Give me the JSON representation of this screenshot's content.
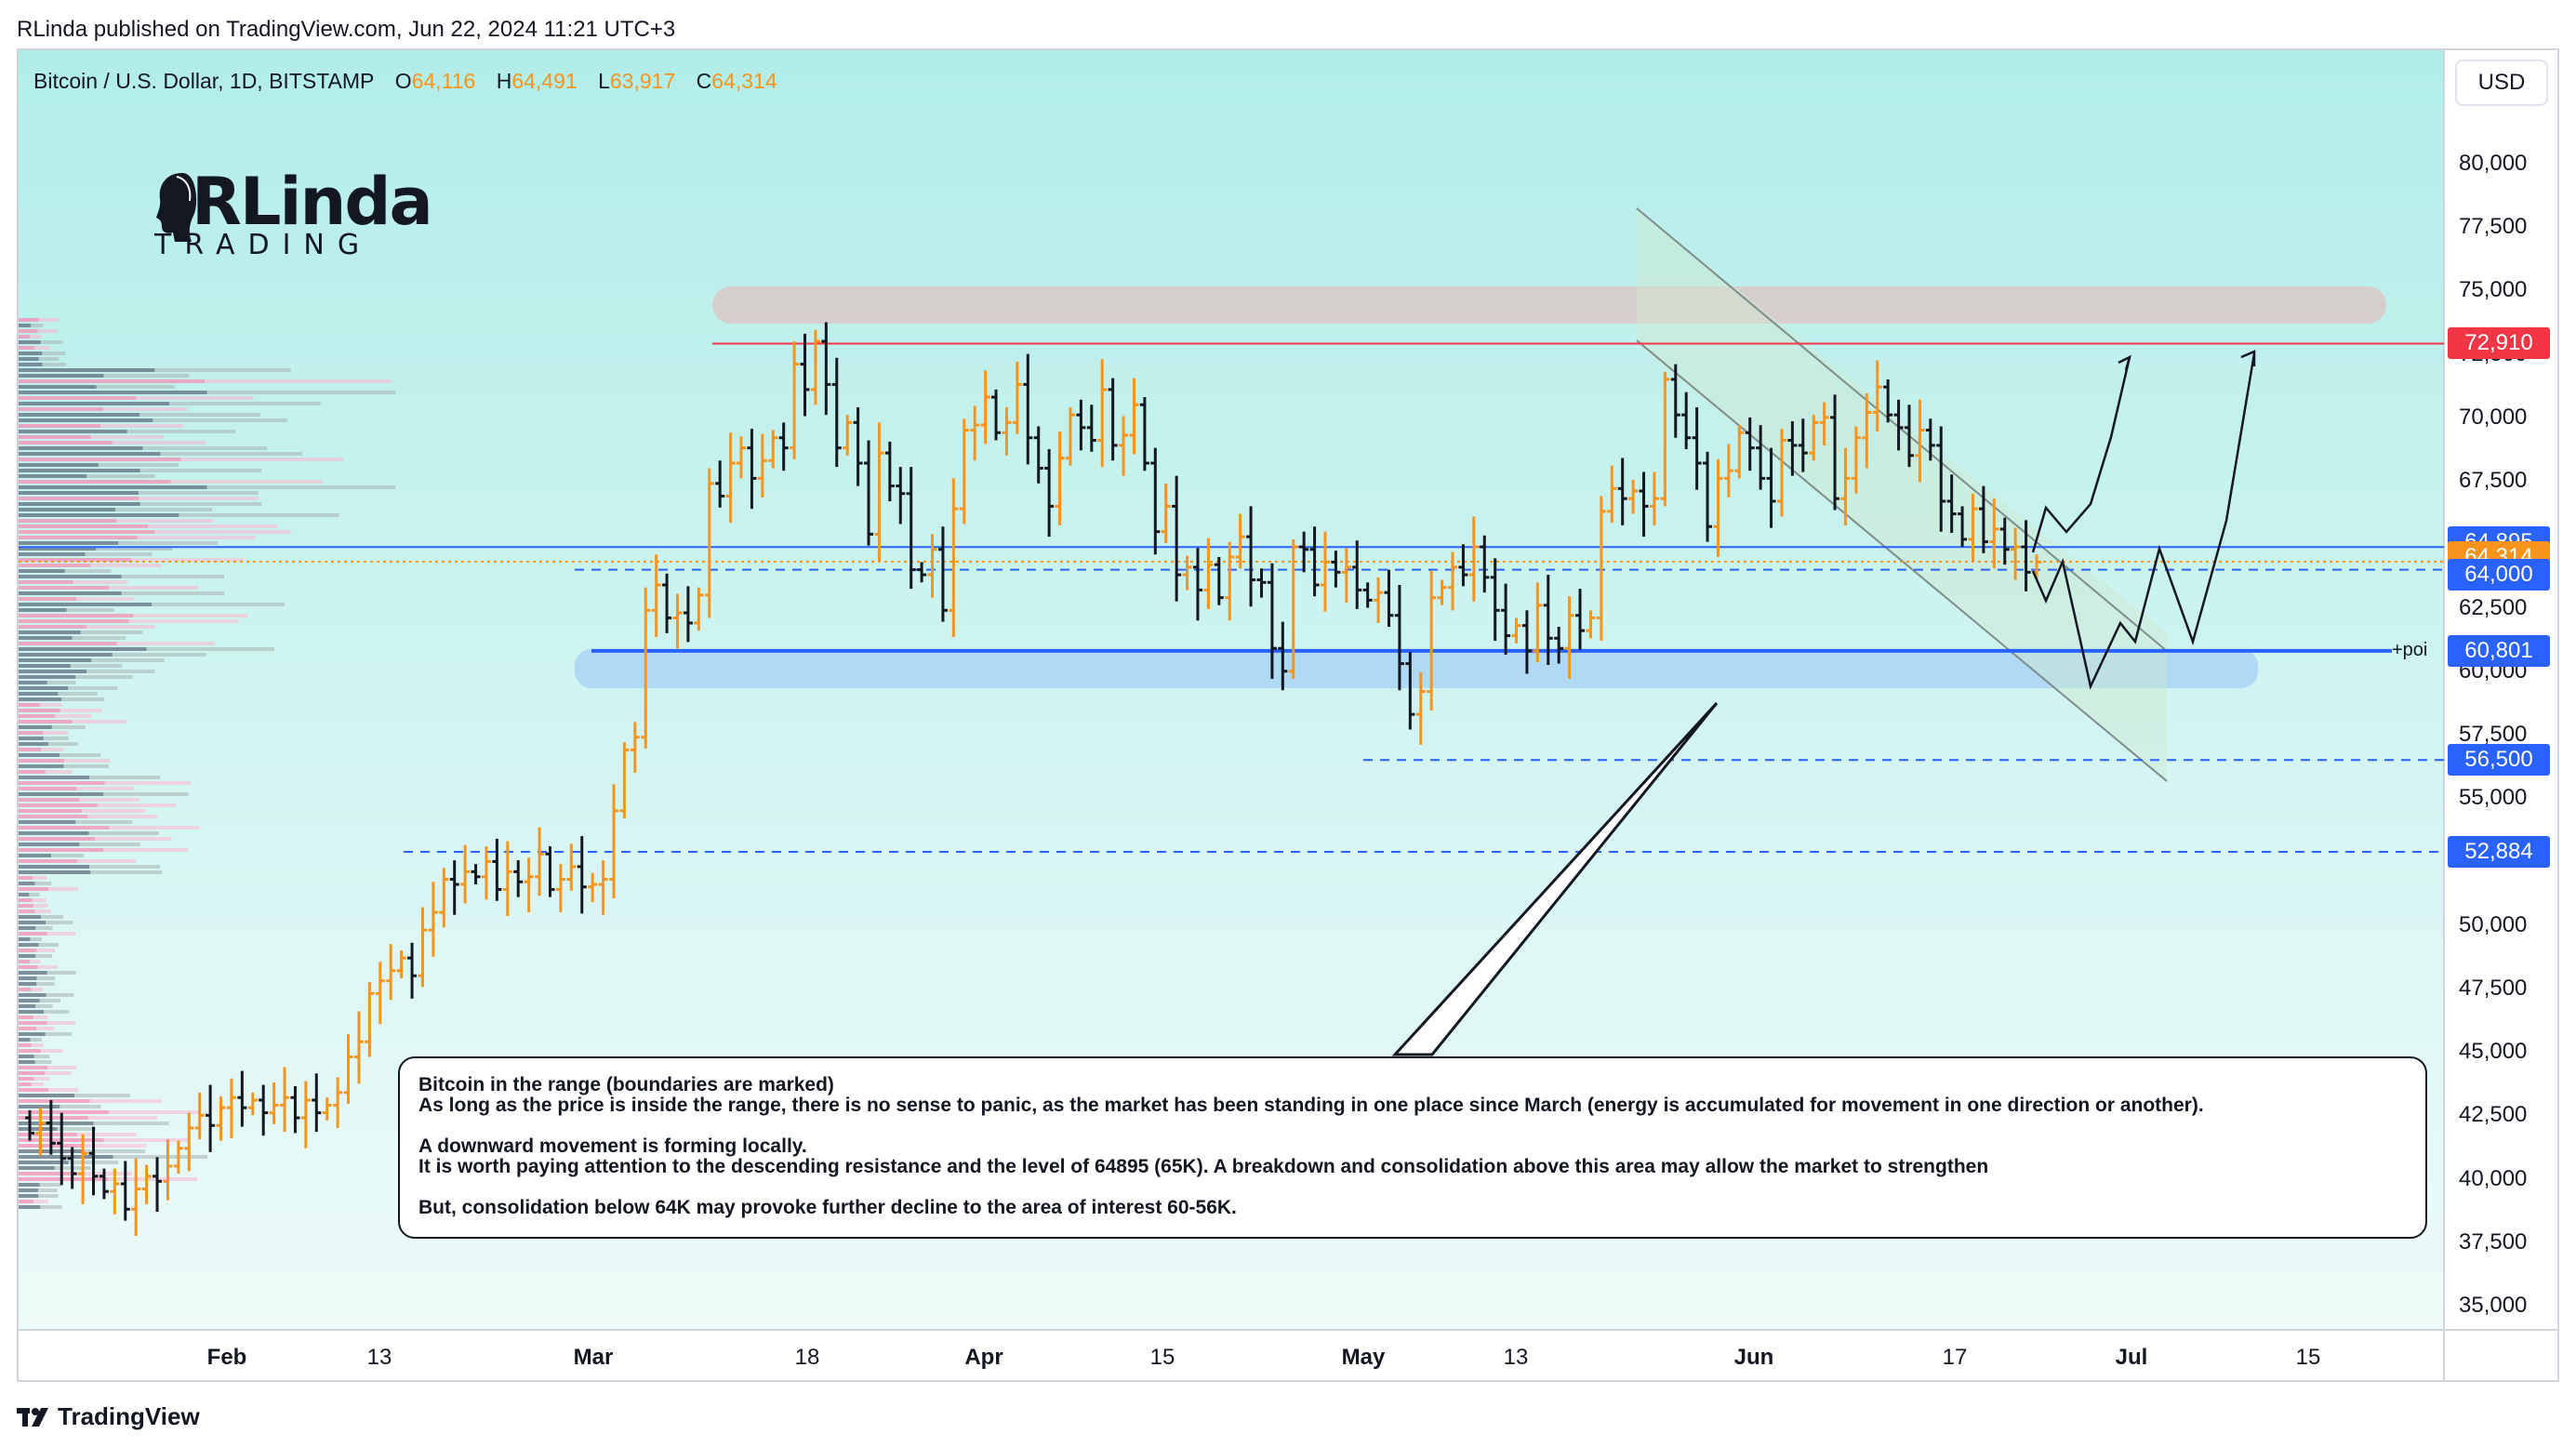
{
  "publisher_line": "RLinda published on TradingView.com, Jun 22, 2024 11:21 UTC+3",
  "symbol": {
    "name": "Bitcoin / U.S. Dollar, 1D, BITSTAMP",
    "open_label": "O",
    "open": "64,116",
    "high_label": "H",
    "high": "64,491",
    "low_label": "L",
    "low": "63,917",
    "close_label": "C",
    "close": "64,314"
  },
  "currency_button": "USD",
  "logo": {
    "main": "RLinda",
    "sub": "TRADING",
    "icon": "woman-head-silhouette-icon"
  },
  "y_axis": [
    "80,000",
    "77,500",
    "75,000",
    "72,500",
    "70,000",
    "67,500",
    "62,500",
    "60,000",
    "57,500",
    "55,000",
    "50,000",
    "47,500",
    "45,000",
    "42,500",
    "40,000",
    "37,500",
    "35,000"
  ],
  "x_axis": [
    {
      "label": "Feb",
      "month": true
    },
    {
      "label": "13",
      "month": false
    },
    {
      "label": "Mar",
      "month": true
    },
    {
      "label": "18",
      "month": false
    },
    {
      "label": "Apr",
      "month": true
    },
    {
      "label": "15",
      "month": false
    },
    {
      "label": "May",
      "month": true
    },
    {
      "label": "13",
      "month": false
    },
    {
      "label": "Jun",
      "month": true
    },
    {
      "label": "17",
      "month": false
    },
    {
      "label": "Jul",
      "month": true
    },
    {
      "label": "15",
      "month": false
    }
  ],
  "price_tags": [
    {
      "value": "72,910",
      "color": "#f23645"
    },
    {
      "value": "64,895",
      "color": "#2962ff"
    },
    {
      "value": "64,314",
      "color": "#f7941d"
    },
    {
      "value": "64,000",
      "color": "#2962ff"
    },
    {
      "value": "60,801",
      "color": "#2962ff"
    },
    {
      "value": "56,500",
      "color": "#2962ff"
    },
    {
      "value": "52,884",
      "color": "#2962ff"
    }
  ],
  "poi_label": "+poi",
  "colors": {
    "background_top": "#b2ede9",
    "background_bottom": "#eefbf9",
    "bull": "#f7941d",
    "bear": "#131722",
    "resistance": "#f23645",
    "level": "#2962ff",
    "supply_zone": "#d9c9c9",
    "demand_zone": "#a9d4f5"
  },
  "note": {
    "title": "Bitcoin in the range (boundaries are marked)",
    "line1": "As long as the price is inside the range, there is no sense to panic, as the market has been standing in one place since March (energy is accumulated for movement in one direction or another).",
    "line2": "A downward movement is forming locally.",
    "line3": "It is worth paying attention to the descending resistance and the level of 64895 (65K). A breakdown and consolidation above this area may allow the market to strengthen",
    "line4": "But, consolidation below 64K may provoke further decline to the area of interest 60-56K."
  },
  "footer": "TradingView"
}
